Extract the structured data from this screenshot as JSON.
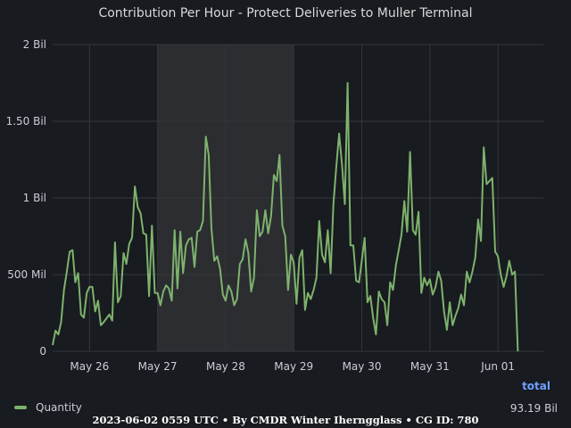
{
  "chart_data": {
    "type": "line",
    "title": "Contribution Per Hour - Protect Deliveries to Muller Terminal",
    "y_ticks": [
      "0",
      "500 Mil",
      "1 Bil",
      "1.50 Bil",
      "2 Bil"
    ],
    "y_tick_values": [
      0,
      500000000,
      1000000000,
      1500000000,
      2000000000
    ],
    "ylim": [
      0,
      2000000000
    ],
    "x_ticks": [
      "May 26",
      "May 27",
      "May 28",
      "May 29",
      "May 30",
      "May 31",
      "Jun 01"
    ],
    "xlim": [
      "2023-05-25T11:00",
      "2023-06-01T16:00"
    ],
    "x_tick_dates": [
      "2023-05-26T00:00",
      "2023-05-27T00:00",
      "2023-05-28T00:00",
      "2023-05-29T00:00",
      "2023-05-30T00:00",
      "2023-05-31T00:00",
      "2023-06-01T00:00"
    ],
    "shaded_region": [
      "2023-05-27T00:00",
      "2023-05-29T00:00"
    ],
    "grid": true,
    "series": [
      {
        "name": "Quantity",
        "color": "#7eb26d",
        "x_start": "2023-05-25T11:00",
        "interval_hours": 1,
        "values": [
          40,
          135,
          110,
          190,
          400,
          520,
          650,
          660,
          450,
          510,
          240,
          220,
          380,
          420,
          420,
          260,
          330,
          170,
          190,
          215,
          240,
          200,
          710,
          320,
          360,
          640,
          570,
          700,
          740,
          1075,
          940,
          900,
          770,
          760,
          360,
          820,
          380,
          380,
          300,
          390,
          430,
          410,
          330,
          790,
          410,
          780,
          510,
          690,
          730,
          740,
          550,
          780,
          790,
          850,
          1400,
          1280,
          800,
          590,
          620,
          540,
          370,
          330,
          430,
          390,
          300,
          340,
          570,
          600,
          730,
          640,
          390,
          480,
          920,
          750,
          780,
          920,
          770,
          880,
          1150,
          1110,
          1280,
          820,
          750,
          400,
          630,
          580,
          310,
          610,
          660,
          270,
          380,
          340,
          400,
          480,
          850,
          630,
          580,
          790,
          510,
          960,
          1200,
          1420,
          1220,
          960,
          1750,
          690,
          690,
          460,
          450,
          590,
          740,
          320,
          360,
          220,
          110,
          390,
          340,
          320,
          170,
          450,
          400,
          560,
          660,
          760,
          980,
          780,
          1300,
          790,
          760,
          910,
          380,
          480,
          430,
          470,
          370,
          420,
          520,
          460,
          260,
          140,
          320,
          170,
          230,
          280,
          370,
          300,
          520,
          450,
          520,
          610,
          860,
          720,
          1330,
          1090,
          1110,
          1130,
          650,
          620,
          500,
          420,
          490,
          590,
          500,
          520,
          0
        ]
      }
    ],
    "legend": [
      {
        "label": "Quantity",
        "color": "#7eb26d"
      }
    ],
    "legend_placement": "bottom-left",
    "totals": {
      "header": "total",
      "value": "93.19 Bil"
    }
  },
  "footer": "2023-06-02 0559 UTC • By CMDR Winter Iherngglass • CG ID: 780"
}
